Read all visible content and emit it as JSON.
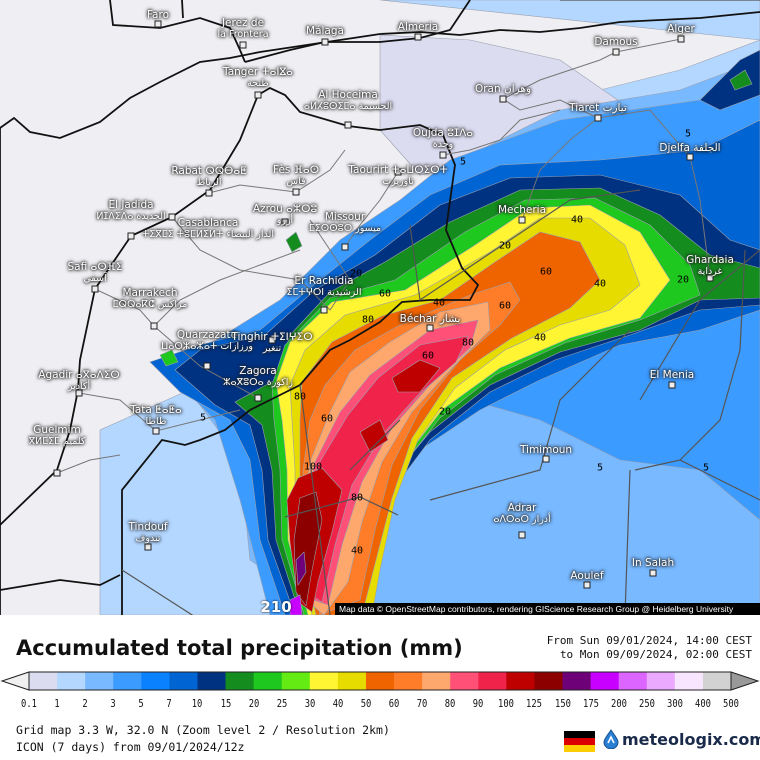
{
  "map": {
    "attribution": "Map data © OpenStreetMap contributors, rendering GIScience Research Group @ Heidelberg University",
    "cities": [
      {
        "name": "Faro"
      },
      {
        "name": "Jerez de",
        "sub": "la Frontera"
      },
      {
        "name": "Málaga"
      },
      {
        "name": "Almeria"
      },
      {
        "name": "Tanger ⵜⴰⵏⴵⴰ",
        "sub": "طنجة"
      },
      {
        "name": "Al Hoceima",
        "sub": "ⴰⵍⵃⵓⵙⵉⵎⴰ الحسيمة"
      },
      {
        "name": "Oujda ⵓⵊⴷⴰ",
        "sub": "وجدة"
      },
      {
        "name": "Oran وهران"
      },
      {
        "name": "Damous"
      },
      {
        "name": "Alger"
      },
      {
        "name": "Tiaret تيارت"
      },
      {
        "name": "Djelfa الجلفة"
      },
      {
        "name": "Taourirt ⵜⴰⵡⵔⵉⵔⵜ",
        "sub": "تاوريرت"
      },
      {
        "name": "Mecheria"
      },
      {
        "name": "Ghardaia",
        "sub": "غرداية"
      },
      {
        "name": "Rabat ⵕⵕⴱⴰⵟ",
        "sub": "الرباط"
      },
      {
        "name": "Fès ⴼⴰⵙ",
        "sub": "فاس"
      },
      {
        "name": "Azrou ⴰⵣⵔⵓ",
        "sub": "أزرو"
      },
      {
        "name": "Missour",
        "sub": "ⵎⵉⵙⵙⵓⵔ ميسور"
      },
      {
        "name": "El Jadida",
        "sub": "ⵍⵊⴷⵉⴷⴰ الجديدة"
      },
      {
        "name": "Casablanca",
        "sub": "ⵜⵉⴳⵎⵉ ⵜⵓⵎⵍⵉⵍⵜ الدار البيضاء"
      },
      {
        "name": "Safi ⴰⵙⴼⵉ",
        "sub": "آسفي"
      },
      {
        "name": "Marrakech",
        "sub": "ⵎⵕⵕⴰⴽⵛ مراكش"
      },
      {
        "name": "Er Rachidia",
        "sub": "ⵉⵎⵜⵖⵔⵏ الرشيدية"
      },
      {
        "name": "Quarzazate",
        "sub": "ⵡⴰⵔⵣⴰⵣⴰⵜ ورزازات"
      },
      {
        "name": "Tinghir ⵜⵉⵏⵖⵉⵔ",
        "sub": "تنغير"
      },
      {
        "name": "Béchar بشار"
      },
      {
        "name": "Zagora",
        "sub": "ⵣⴰⴳⵓⵔⴰ زاكورة"
      },
      {
        "name": "Agadir ⴰⴳⴰⴷⵉⵔ",
        "sub": "أكادير"
      },
      {
        "name": "Tata ⵟⴰⵟⴰ",
        "sub": "طاطا"
      },
      {
        "name": "Guelmim",
        "sub": "ⴳⵍⵎⵉⵎ كلميم"
      },
      {
        "name": "Tindouf",
        "sub": "تندوف"
      },
      {
        "name": "El Menia"
      },
      {
        "name": "Timimoun"
      },
      {
        "name": "Adrar",
        "sub": "ⴰⴷⵔⴰⵔ أدرار"
      },
      {
        "name": "In Salah"
      },
      {
        "name": "Aoulef"
      }
    ],
    "contour_labels": [
      "5",
      "5",
      "5",
      "5",
      "5",
      "20",
      "20",
      "20",
      "20",
      "40",
      "40",
      "40",
      "40",
      "40",
      "60",
      "60",
      "60",
      "60",
      "60",
      "80",
      "80",
      "80",
      "80",
      "100",
      "210"
    ]
  },
  "legend": {
    "title": "Accumulated total precipitation (mm)",
    "period_from": "From Sun 09/01/2024, 14:00 CEST",
    "period_to": "to Mon 09/09/2024, 02:00 CEST",
    "ticks": [
      "0.1",
      "1",
      "2",
      "3",
      "5",
      "7",
      "10",
      "15",
      "20",
      "25",
      "30",
      "40",
      "50",
      "60",
      "70",
      "80",
      "90",
      "100",
      "125",
      "150",
      "175",
      "200",
      "250",
      "300",
      "400",
      "500"
    ],
    "colors": [
      "#dcdcf0",
      "#b4d7ff",
      "#78b9ff",
      "#3c9bff",
      "#0a82ff",
      "#0064d2",
      "#003282",
      "#148c1e",
      "#1ec81e",
      "#64eb14",
      "#fff532",
      "#e6dc00",
      "#f06400",
      "#ff7d28",
      "#ffa86e",
      "#ff5078",
      "#f0234b",
      "#be0000",
      "#8c0000",
      "#6e0078",
      "#c800ff",
      "#dc64ff",
      "#ebaaff",
      "#f8e6ff",
      "#d2d2d2"
    ]
  },
  "footer": {
    "grid_info": "Grid map 3.3 W, 32.0 N (Zoom level 2 / Resolution 2km)",
    "model_info": "ICON (7 days) from  09/01/2024/12z",
    "brand": "meteologix.com"
  }
}
